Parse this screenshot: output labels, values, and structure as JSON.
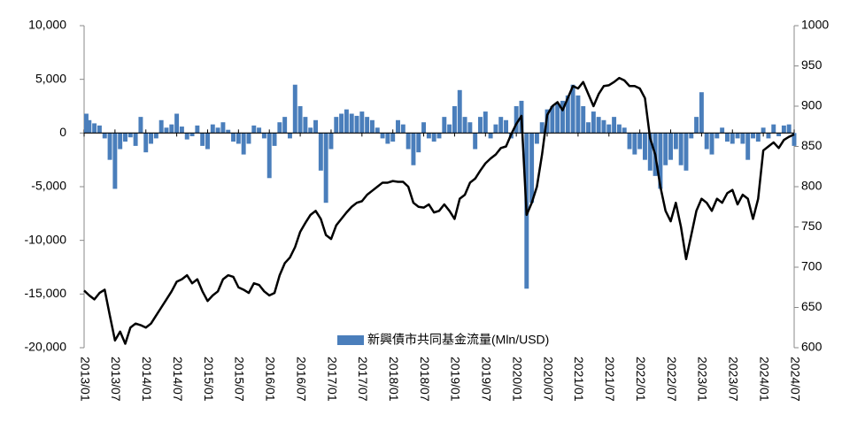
{
  "chart_data": {
    "type": "bar-line",
    "categories": [
      "2013/01",
      null,
      null,
      null,
      null,
      null,
      "2013/07",
      null,
      null,
      null,
      null,
      null,
      "2014/01",
      null,
      null,
      null,
      null,
      null,
      "2014/07",
      null,
      null,
      null,
      null,
      null,
      "2015/01",
      null,
      null,
      null,
      null,
      null,
      "2015/07",
      null,
      null,
      null,
      null,
      null,
      "2016/01",
      null,
      null,
      null,
      null,
      null,
      "2016/07",
      null,
      null,
      null,
      null,
      null,
      "2017/01",
      null,
      null,
      null,
      null,
      null,
      "2017/07",
      null,
      null,
      null,
      null,
      null,
      "2018/01",
      null,
      null,
      null,
      null,
      null,
      "2018/07",
      null,
      null,
      null,
      null,
      null,
      "2019/01",
      null,
      null,
      null,
      null,
      null,
      "2019/07",
      null,
      null,
      null,
      null,
      null,
      "2020/01",
      null,
      null,
      null,
      null,
      null,
      "2020/07",
      null,
      null,
      null,
      null,
      null,
      "2021/01",
      null,
      null,
      null,
      null,
      null,
      "2021/07",
      null,
      null,
      null,
      null,
      null,
      "2022/01",
      null,
      null,
      null,
      null,
      null,
      "2022/07",
      null,
      null,
      null,
      null,
      null,
      "2023/01",
      null,
      null,
      null,
      null,
      null,
      "2023/07",
      null,
      null,
      null,
      null,
      null,
      "2024/01",
      null,
      null,
      null,
      null,
      null,
      "2024/07"
    ],
    "series": [
      {
        "name": "新興債市共同基金流量(Mln/USD)",
        "type": "bar",
        "color": "#4a7ebb",
        "values": [
          1800,
          1200,
          900,
          700,
          -500,
          -2500,
          -5200,
          -1500,
          -800,
          -400,
          -1200,
          1500,
          -1800,
          -1000,
          -500,
          1200,
          500,
          800,
          1800,
          600,
          -600,
          -300,
          700,
          -1200,
          -1500,
          800,
          500,
          1000,
          300,
          -800,
          -1000,
          -2000,
          -1000,
          700,
          500,
          -500,
          -4200,
          -1200,
          1000,
          1500,
          -500,
          4500,
          2500,
          1500,
          500,
          1200,
          -3500,
          -6500,
          -1500,
          1500,
          1800,
          2200,
          1800,
          1600,
          2000,
          1500,
          1200,
          500,
          -500,
          -1000,
          -800,
          1200,
          800,
          -1500,
          -3000,
          -1800,
          1000,
          -500,
          -800,
          -500,
          1500,
          800,
          2500,
          4000,
          1500,
          1000,
          -1500,
          1500,
          2000,
          -500,
          800,
          1500,
          1200,
          -500,
          2500,
          3000,
          -14500,
          -6500,
          -1000,
          1000,
          2200,
          2500,
          2800,
          3000,
          3500,
          4500,
          3500,
          2500,
          1000,
          2000,
          1500,
          1200,
          800,
          1500,
          800,
          500,
          -1500,
          -2000,
          -1500,
          -2500,
          -3500,
          -4000,
          -5200,
          -3000,
          -2500,
          -1500,
          -3000,
          -3500,
          -500,
          1500,
          3800,
          -1500,
          -2000,
          -500,
          500,
          -800,
          -1000,
          -500,
          -1000,
          -2500,
          -500,
          -800,
          500,
          -500,
          800,
          -300,
          700,
          800,
          -1200
        ]
      },
      {
        "type": "line",
        "axis": "y2",
        "color": "#000000",
        "values": [
          671,
          665,
          660,
          668,
          672,
          640,
          609,
          620,
          605,
          625,
          630,
          628,
          625,
          630,
          640,
          650,
          660,
          670,
          682,
          685,
          690,
          680,
          685,
          670,
          658,
          665,
          670,
          685,
          690,
          688,
          675,
          672,
          668,
          680,
          678,
          670,
          665,
          668,
          690,
          705,
          712,
          725,
          744,
          755,
          765,
          770,
          760,
          740,
          735,
          752,
          760,
          768,
          775,
          780,
          782,
          790,
          795,
          800,
          805,
          805,
          807,
          806,
          806,
          800,
          780,
          775,
          774,
          778,
          768,
          770,
          778,
          770,
          760,
          785,
          790,
          805,
          810,
          820,
          829,
          835,
          840,
          848,
          850,
          865,
          878,
          888,
          765,
          780,
          800,
          840,
          889,
          900,
          905,
          895,
          910,
          925,
          922,
          930,
          915,
          900,
          915,
          925,
          926,
          930,
          935,
          932,
          925,
          925,
          922,
          910,
          860,
          840,
          800,
          770,
          757,
          780,
          750,
          710,
          740,
          770,
          785,
          780,
          770,
          785,
          780,
          792,
          796,
          778,
          790,
          785,
          760,
          785,
          845,
          850,
          855,
          848,
          858,
          862,
          865
        ]
      }
    ],
    "ylim": [
      -20000,
      10000
    ],
    "yticks": [
      {
        "value": -20000,
        "label": "-20,000"
      },
      {
        "value": -15000,
        "label": "-15,000"
      },
      {
        "value": -10000,
        "label": "-10,000"
      },
      {
        "value": -5000,
        "label": "-5,000"
      },
      0,
      {
        "value": 5000,
        "label": "5,000"
      },
      {
        "value": 10000,
        "label": "10,000"
      }
    ],
    "y2lim": [
      600,
      1000
    ],
    "y2ticks": [
      600,
      650,
      700,
      750,
      800,
      850,
      900,
      950,
      1000
    ],
    "legend": "bottom"
  }
}
